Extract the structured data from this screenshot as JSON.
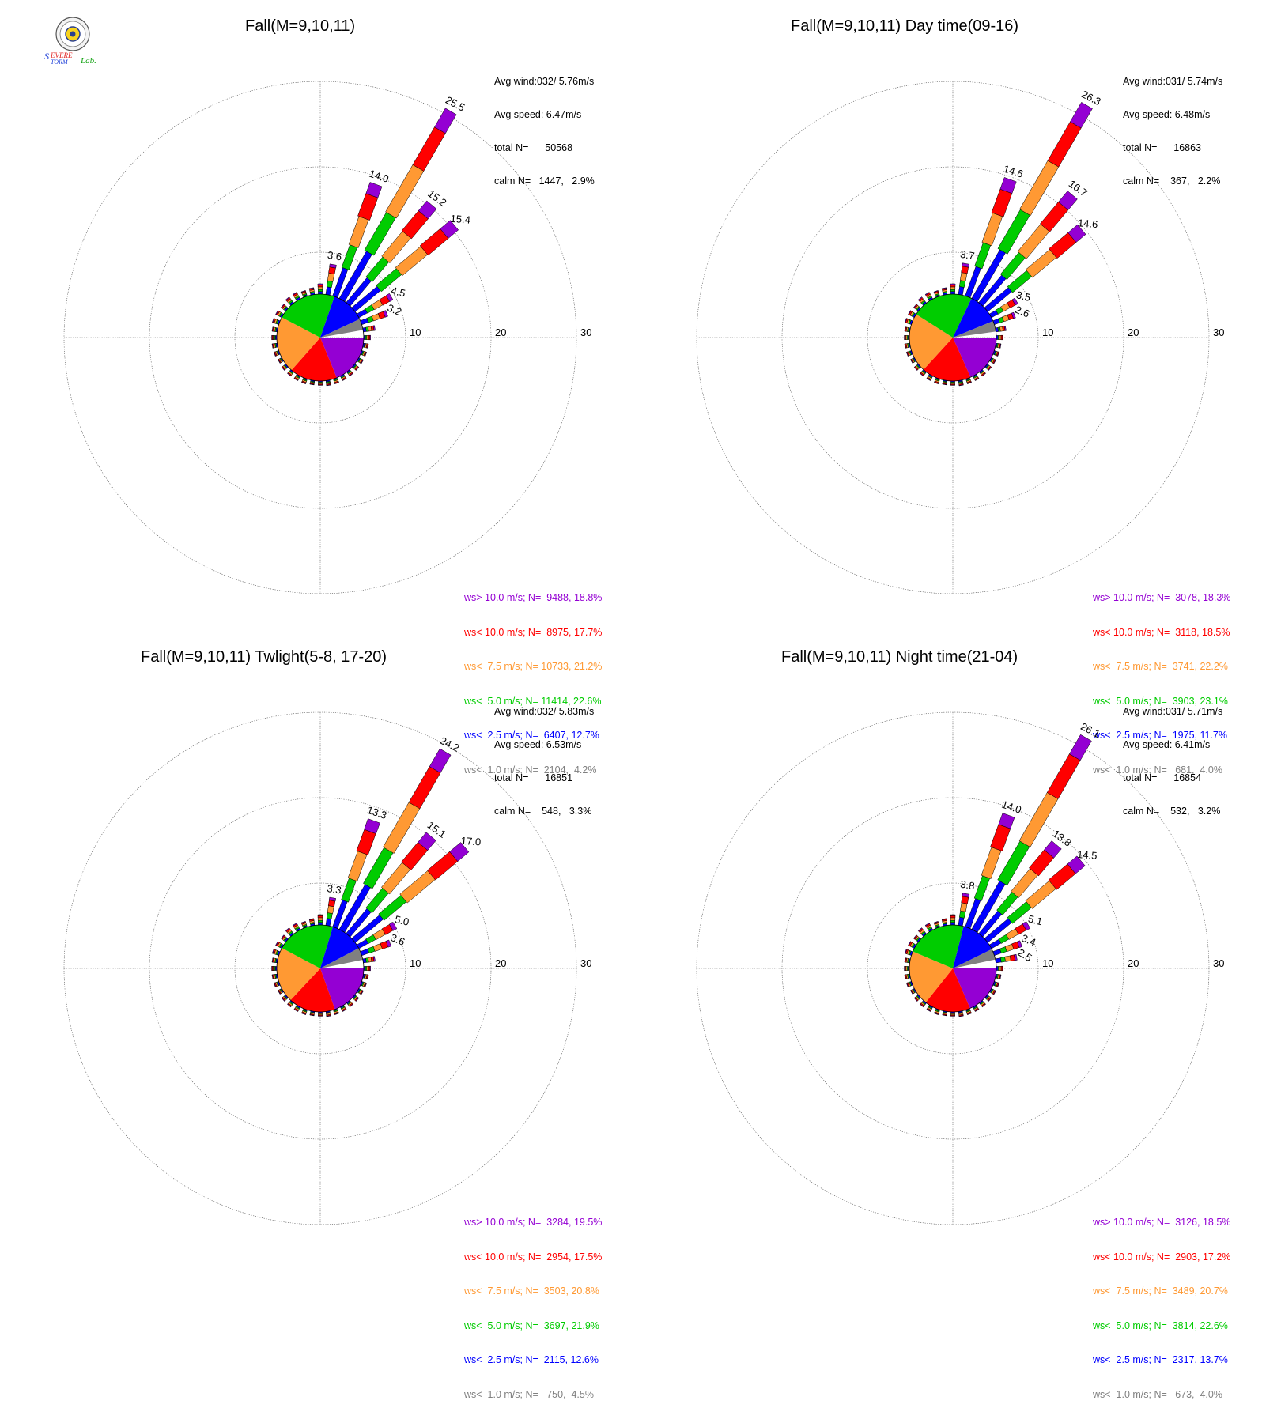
{
  "legend_colors": [
    "#9400d3",
    "#ff0000",
    "#ff9933",
    "#00cc00",
    "#0000ff",
    "#808080"
  ],
  "chart_data": [
    {
      "type": "wind-rose",
      "title": "Fall(M=9,10,11)",
      "rings": [
        10,
        20,
        30
      ],
      "stats": [
        "Avg wind:032/ 5.76m/s",
        "Avg speed: 6.47m/s",
        "total N=      50568",
        "calm N=   1447,   2.9%"
      ],
      "legend": [
        "ws> 10.0 m/s; N=  9488, 18.8%",
        "ws< 10.0 m/s; N=  8975, 17.7%",
        "ws<  7.5 m/s; N= 10733, 21.2%",
        "ws<  5.0 m/s; N= 11414, 22.6%",
        "ws<  2.5 m/s; N=  6407, 12.7%",
        "ws<  1.0 m/s; N=  2104,  4.2%"
      ],
      "center_pie": [
        18.8,
        17.7,
        21.2,
        22.6,
        12.7,
        4.2
      ],
      "spokes": [
        {
          "dir": 0,
          "total": 1.2
        },
        {
          "dir": 10,
          "total": 3.6,
          "label": "3.6"
        },
        {
          "dir": 20,
          "total": 14.0,
          "label": "14.0"
        },
        {
          "dir": 30,
          "total": 25.5,
          "label": "25.5"
        },
        {
          "dir": 40,
          "total": 15.2,
          "label": "15.2"
        },
        {
          "dir": 50,
          "total": 15.4,
          "label": "15.4"
        },
        {
          "dir": 60,
          "total": 4.5,
          "label": "4.5"
        },
        {
          "dir": 70,
          "total": 3.2,
          "label": "3.2"
        },
        {
          "dir": 80,
          "total": 1.4
        },
        {
          "dir": 90,
          "total": 0.8
        },
        {
          "dir": 100,
          "total": 0.6
        },
        {
          "dir": 110,
          "total": 0.6
        },
        {
          "dir": 120,
          "total": 0.6
        },
        {
          "dir": 130,
          "total": 0.6
        },
        {
          "dir": 140,
          "total": 0.6
        },
        {
          "dir": 150,
          "total": 0.6
        },
        {
          "dir": 160,
          "total": 0.6
        },
        {
          "dir": 170,
          "total": 0.6
        },
        {
          "dir": 180,
          "total": 0.5
        },
        {
          "dir": 190,
          "total": 0.5
        },
        {
          "dir": 200,
          "total": 0.6
        },
        {
          "dir": 210,
          "total": 0.6
        },
        {
          "dir": 220,
          "total": 0.6
        },
        {
          "dir": 230,
          "total": 0.6
        },
        {
          "dir": 240,
          "total": 0.5
        },
        {
          "dir": 250,
          "total": 0.6
        },
        {
          "dir": 260,
          "total": 0.6
        },
        {
          "dir": 270,
          "total": 0.6
        },
        {
          "dir": 280,
          "total": 0.6
        },
        {
          "dir": 290,
          "total": 0.8
        },
        {
          "dir": 300,
          "total": 0.8
        },
        {
          "dir": 310,
          "total": 0.7
        },
        {
          "dir": 320,
          "total": 0.9
        },
        {
          "dir": 330,
          "total": 0.9
        },
        {
          "dir": 340,
          "total": 0.7
        },
        {
          "dir": 350,
          "total": 0.8
        }
      ]
    },
    {
      "type": "wind-rose",
      "title": "Fall(M=9,10,11) Day time(09-16)",
      "rings": [
        10,
        20,
        30
      ],
      "stats": [
        "Avg wind:031/ 5.74m/s",
        "Avg speed: 6.48m/s",
        "total N=      16863",
        "calm N=    367,   2.2%"
      ],
      "legend": [
        "ws> 10.0 m/s; N=  3078, 18.3%",
        "ws< 10.0 m/s; N=  3118, 18.5%",
        "ws<  7.5 m/s; N=  3741, 22.2%",
        "ws<  5.0 m/s; N=  3903, 23.1%",
        "ws<  2.5 m/s; N=  1975, 11.7%",
        "ws<  1.0 m/s; N=   681,  4.0%"
      ],
      "center_pie": [
        18.3,
        18.5,
        22.2,
        23.1,
        11.7,
        4.0
      ],
      "spokes": [
        {
          "dir": 0,
          "total": 1.2
        },
        {
          "dir": 10,
          "total": 3.7,
          "label": "3.7"
        },
        {
          "dir": 20,
          "total": 14.6,
          "label": "14.6"
        },
        {
          "dir": 30,
          "total": 26.3,
          "label": "26.3"
        },
        {
          "dir": 40,
          "total": 16.7,
          "label": "16.7"
        },
        {
          "dir": 50,
          "total": 14.6,
          "label": "14.6"
        },
        {
          "dir": 60,
          "total": 3.5,
          "label": "3.5"
        },
        {
          "dir": 70,
          "total": 2.6,
          "label": "2.6"
        },
        {
          "dir": 80,
          "total": 1.2
        },
        {
          "dir": 90,
          "total": 0.8
        },
        {
          "dir": 100,
          "total": 0.6
        },
        {
          "dir": 110,
          "total": 0.6
        },
        {
          "dir": 120,
          "total": 0.6
        },
        {
          "dir": 130,
          "total": 0.6
        },
        {
          "dir": 140,
          "total": 0.6
        },
        {
          "dir": 150,
          "total": 0.6
        },
        {
          "dir": 160,
          "total": 0.6
        },
        {
          "dir": 170,
          "total": 0.6
        },
        {
          "dir": 180,
          "total": 0.5
        },
        {
          "dir": 190,
          "total": 0.5
        },
        {
          "dir": 200,
          "total": 0.6
        },
        {
          "dir": 210,
          "total": 0.6
        },
        {
          "dir": 220,
          "total": 0.6
        },
        {
          "dir": 230,
          "total": 0.6
        },
        {
          "dir": 240,
          "total": 0.5
        },
        {
          "dir": 250,
          "total": 0.6
        },
        {
          "dir": 260,
          "total": 0.6
        },
        {
          "dir": 270,
          "total": 0.6
        },
        {
          "dir": 280,
          "total": 0.6
        },
        {
          "dir": 290,
          "total": 0.8
        },
        {
          "dir": 300,
          "total": 0.8
        },
        {
          "dir": 310,
          "total": 0.7
        },
        {
          "dir": 320,
          "total": 0.9
        },
        {
          "dir": 330,
          "total": 0.9
        },
        {
          "dir": 340,
          "total": 0.7
        },
        {
          "dir": 350,
          "total": 0.8
        }
      ]
    },
    {
      "type": "wind-rose",
      "title": "Fall(M=9,10,11) Twlight(5-8, 17-20)",
      "rings": [
        10,
        20,
        30
      ],
      "stats": [
        "Avg wind:032/ 5.83m/s",
        "Avg speed: 6.53m/s",
        "total N=      16851",
        "calm N=    548,   3.3%"
      ],
      "legend": [
        "ws> 10.0 m/s; N=  3284, 19.5%",
        "ws< 10.0 m/s; N=  2954, 17.5%",
        "ws<  7.5 m/s; N=  3503, 20.8%",
        "ws<  5.0 m/s; N=  3697, 21.9%",
        "ws<  2.5 m/s; N=  2115, 12.6%",
        "ws<  1.0 m/s; N=   750,  4.5%"
      ],
      "center_pie": [
        19.5,
        17.5,
        20.8,
        21.9,
        12.6,
        4.5
      ],
      "spokes": [
        {
          "dir": 0,
          "total": 1.2
        },
        {
          "dir": 10,
          "total": 3.3,
          "label": "3.3"
        },
        {
          "dir": 20,
          "total": 13.3,
          "label": "13.3"
        },
        {
          "dir": 30,
          "total": 24.2,
          "label": "24.2"
        },
        {
          "dir": 40,
          "total": 15.1,
          "label": "15.1"
        },
        {
          "dir": 50,
          "total": 17.0,
          "label": "17.0"
        },
        {
          "dir": 60,
          "total": 5.0,
          "label": "5.0"
        },
        {
          "dir": 70,
          "total": 3.6,
          "label": "3.6"
        },
        {
          "dir": 80,
          "total": 1.4
        },
        {
          "dir": 90,
          "total": 0.8
        },
        {
          "dir": 100,
          "total": 0.6
        },
        {
          "dir": 110,
          "total": 0.6
        },
        {
          "dir": 120,
          "total": 0.6
        },
        {
          "dir": 130,
          "total": 0.6
        },
        {
          "dir": 140,
          "total": 0.6
        },
        {
          "dir": 150,
          "total": 0.6
        },
        {
          "dir": 160,
          "total": 0.6
        },
        {
          "dir": 170,
          "total": 0.6
        },
        {
          "dir": 180,
          "total": 0.5
        },
        {
          "dir": 190,
          "total": 0.5
        },
        {
          "dir": 200,
          "total": 0.6
        },
        {
          "dir": 210,
          "total": 0.6
        },
        {
          "dir": 220,
          "total": 0.6
        },
        {
          "dir": 230,
          "total": 0.6
        },
        {
          "dir": 240,
          "total": 0.5
        },
        {
          "dir": 250,
          "total": 0.6
        },
        {
          "dir": 260,
          "total": 0.6
        },
        {
          "dir": 270,
          "total": 0.6
        },
        {
          "dir": 280,
          "total": 0.6
        },
        {
          "dir": 290,
          "total": 0.8
        },
        {
          "dir": 300,
          "total": 0.8
        },
        {
          "dir": 310,
          "total": 0.7
        },
        {
          "dir": 320,
          "total": 0.9
        },
        {
          "dir": 330,
          "total": 0.9
        },
        {
          "dir": 340,
          "total": 0.7
        },
        {
          "dir": 350,
          "total": 0.8
        }
      ]
    },
    {
      "type": "wind-rose",
      "title": "Fall(M=9,10,11) Night time(21-04)",
      "rings": [
        10,
        20,
        30
      ],
      "stats": [
        "Avg wind:031/ 5.71m/s",
        "Avg speed: 6.41m/s",
        "total N=      16854",
        "calm N=    532,   3.2%"
      ],
      "legend": [
        "ws> 10.0 m/s; N=  3126, 18.5%",
        "ws< 10.0 m/s; N=  2903, 17.2%",
        "ws<  7.5 m/s; N=  3489, 20.7%",
        "ws<  5.0 m/s; N=  3814, 22.6%",
        "ws<  2.5 m/s; N=  2317, 13.7%",
        "ws<  1.0 m/s; N=   673,  4.0%"
      ],
      "center_pie": [
        18.5,
        17.2,
        20.7,
        22.6,
        13.7,
        4.0
      ],
      "spokes": [
        {
          "dir": 0,
          "total": 1.2
        },
        {
          "dir": 10,
          "total": 3.8,
          "label": "3.8"
        },
        {
          "dir": 20,
          "total": 14.0,
          "label": "14.0"
        },
        {
          "dir": 30,
          "total": 26.1,
          "label": "26.1"
        },
        {
          "dir": 40,
          "total": 13.8,
          "label": "13.8"
        },
        {
          "dir": 50,
          "total": 14.5,
          "label": "14.5"
        },
        {
          "dir": 60,
          "total": 5.1,
          "label": "5.1"
        },
        {
          "dir": 70,
          "total": 3.4,
          "label": "3.4"
        },
        {
          "dir": 80,
          "total": 2.5,
          "label": "2.5"
        },
        {
          "dir": 90,
          "total": 0.8
        },
        {
          "dir": 100,
          "total": 0.6
        },
        {
          "dir": 110,
          "total": 0.6
        },
        {
          "dir": 120,
          "total": 0.6
        },
        {
          "dir": 130,
          "total": 0.6
        },
        {
          "dir": 140,
          "total": 0.6
        },
        {
          "dir": 150,
          "total": 0.6
        },
        {
          "dir": 160,
          "total": 0.6
        },
        {
          "dir": 170,
          "total": 0.6
        },
        {
          "dir": 180,
          "total": 0.5
        },
        {
          "dir": 190,
          "total": 0.5
        },
        {
          "dir": 200,
          "total": 0.6
        },
        {
          "dir": 210,
          "total": 0.6
        },
        {
          "dir": 220,
          "total": 0.6
        },
        {
          "dir": 230,
          "total": 0.6
        },
        {
          "dir": 240,
          "total": 0.5
        },
        {
          "dir": 250,
          "total": 0.6
        },
        {
          "dir": 260,
          "total": 0.6
        },
        {
          "dir": 270,
          "total": 0.6
        },
        {
          "dir": 280,
          "total": 0.6
        },
        {
          "dir": 290,
          "total": 0.8
        },
        {
          "dir": 300,
          "total": 0.8
        },
        {
          "dir": 310,
          "total": 0.7
        },
        {
          "dir": 320,
          "total": 0.9
        },
        {
          "dir": 330,
          "total": 0.9
        },
        {
          "dir": 340,
          "total": 0.7
        },
        {
          "dir": 350,
          "total": 0.8
        }
      ]
    }
  ],
  "logo": {
    "line1": "Severe",
    "line2": "Storm",
    "line3": "Lab."
  }
}
